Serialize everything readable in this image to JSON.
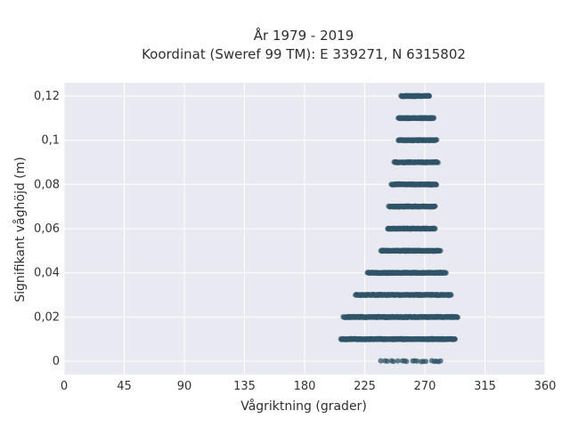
{
  "chart_data": {
    "type": "scatter",
    "title_line1": "År 1979 - 2019",
    "title_line2": "Koordinat (Sweref 99 TM): E 339271, N 6315802",
    "xlabel": "Vågriktning (grader)",
    "ylabel": "Signifikant våghöjd (m)",
    "xlim": [
      0,
      360
    ],
    "ylim": [
      -0.006,
      0.126
    ],
    "xticks": [
      0,
      45,
      90,
      135,
      180,
      225,
      270,
      315,
      360
    ],
    "yticks": [
      0,
      0.02,
      0.04,
      0.06,
      0.08,
      0.1,
      0.12
    ],
    "ytick_labels": [
      "0",
      "0,02",
      "0,04",
      "0,06",
      "0,08",
      "0,1",
      "0,12"
    ],
    "grid": true,
    "background_color": "#e9e9f1",
    "marker_color": "#2f5468",
    "bands": [
      {
        "y": 0.0,
        "x_min": 237,
        "x_max": 284,
        "dense_min": 252,
        "dense_max": 278,
        "sparse": true
      },
      {
        "y": 0.01,
        "x_min": 207,
        "x_max": 293,
        "dense_min": 207,
        "dense_max": 293
      },
      {
        "y": 0.02,
        "x_min": 209,
        "x_max": 295,
        "dense_min": 209,
        "dense_max": 295
      },
      {
        "y": 0.03,
        "x_min": 218,
        "x_max": 290,
        "dense_min": 218,
        "dense_max": 290
      },
      {
        "y": 0.04,
        "x_min": 227,
        "x_max": 286,
        "dense_min": 227,
        "dense_max": 286
      },
      {
        "y": 0.05,
        "x_min": 237,
        "x_max": 282,
        "dense_min": 237,
        "dense_max": 282
      },
      {
        "y": 0.06,
        "x_min": 242,
        "x_max": 278,
        "dense_min": 242,
        "dense_max": 278
      },
      {
        "y": 0.07,
        "x_min": 243,
        "x_max": 278,
        "dense_min": 243,
        "dense_max": 278
      },
      {
        "y": 0.08,
        "x_min": 245,
        "x_max": 279,
        "dense_min": 245,
        "dense_max": 279
      },
      {
        "y": 0.09,
        "x_min": 247,
        "x_max": 280,
        "dense_min": 247,
        "dense_max": 280
      },
      {
        "y": 0.1,
        "x_min": 250,
        "x_max": 279,
        "dense_min": 250,
        "dense_max": 279
      },
      {
        "y": 0.11,
        "x_min": 250,
        "x_max": 277,
        "dense_min": 250,
        "dense_max": 277
      },
      {
        "y": 0.12,
        "x_min": 252,
        "x_max": 274,
        "dense_min": 252,
        "dense_max": 274
      }
    ]
  }
}
